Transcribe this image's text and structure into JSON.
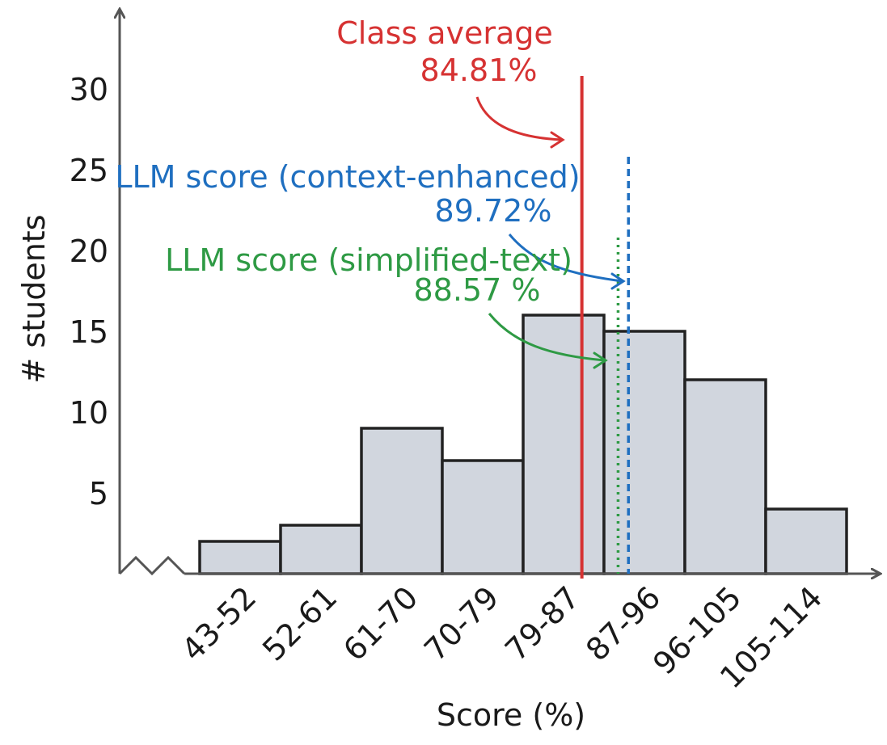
{
  "chart_data": {
    "type": "bar",
    "categories": [
      "43-52",
      "52-61",
      "61-70",
      "70-79",
      "79-87",
      "87-96",
      "96-105",
      "105-114"
    ],
    "values": [
      2,
      3,
      9,
      7,
      16,
      15,
      12,
      4
    ],
    "xlabel": "Score (%)",
    "ylabel": "# students",
    "yticks": [
      "5",
      "10",
      "15",
      "20",
      "25",
      "30"
    ],
    "ylim": [
      0,
      33
    ],
    "x_domain": [
      43,
      114
    ],
    "grid": false,
    "broken_y_axis": true,
    "colors": {
      "bar_fill": "#d1d6de",
      "bar_stroke": "#222222",
      "axis": "#555555"
    },
    "reference_lines": [
      {
        "label": "Class average",
        "value_label": "84.81%",
        "x": 84.81,
        "color": "#d63232",
        "style": "solid",
        "top": 30
      },
      {
        "label": "LLM score (context-enhanced)",
        "value_label": "89.72%",
        "x": 89.72,
        "color": "#1f6fc0",
        "style": "dashed",
        "top": 25
      },
      {
        "label": "LLM score (simplified-text)",
        "value_label": "88.57 %",
        "x": 88.57,
        "color": "#2e9a44",
        "style": "dotted",
        "top": 20
      }
    ]
  }
}
